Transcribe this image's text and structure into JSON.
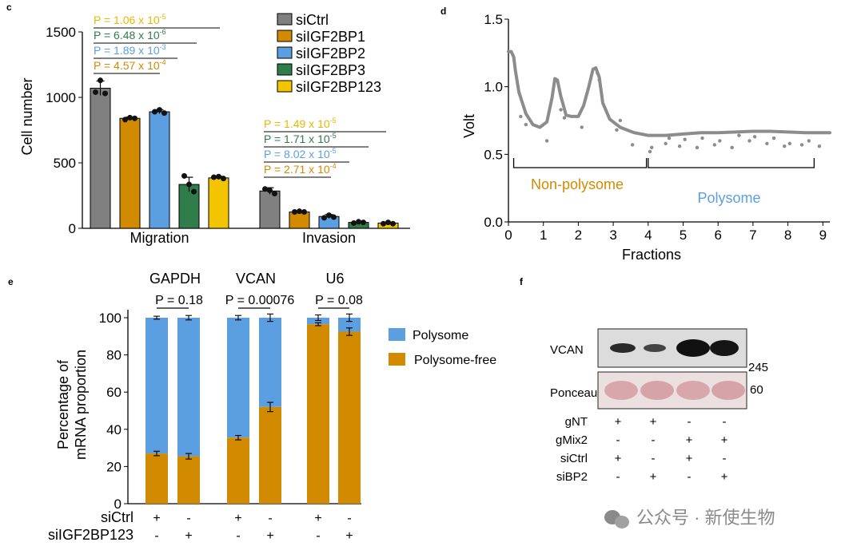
{
  "chart_data": [
    {
      "panel": "c",
      "type": "bar",
      "ylabel": "Cell number",
      "ylim": [
        0,
        1500
      ],
      "yticks": [
        0,
        500,
        1000,
        1500
      ],
      "groups": [
        "Migration",
        "Invasion"
      ],
      "legend": [
        "siCtrl",
        "siIGF2BP1",
        "siIGF2BP2",
        "siIGF2BP3",
        "siIGF2BP123"
      ],
      "series": [
        {
          "name": "siCtrl",
          "color": "#808080",
          "values": [
            1070,
            285
          ],
          "errors": [
            55,
            25
          ]
        },
        {
          "name": "siIGF2BP1",
          "color": "#d28a00",
          "values": [
            840,
            125
          ],
          "errors": [
            10,
            8
          ]
        },
        {
          "name": "siIGF2BP2",
          "color": "#5c9fe0",
          "values": [
            890,
            90
          ],
          "errors": [
            15,
            15
          ]
        },
        {
          "name": "siIGF2BP3",
          "color": "#2e7d4a",
          "values": [
            335,
            45
          ],
          "errors": [
            55,
            6
          ]
        },
        {
          "name": "siIGF2BP123",
          "color": "#f2c500",
          "values": [
            385,
            40
          ],
          "errors": [
            12,
            5
          ]
        }
      ],
      "points": [
        [
          [
            1040,
            1130,
            1030
          ],
          [
            830,
            845,
            840
          ],
          [
            890,
            905,
            880
          ],
          [
            400,
            335,
            280
          ],
          [
            390,
            395,
            380
          ]
        ],
        [
          [
            300,
            290,
            265
          ],
          [
            125,
            130,
            125
          ],
          [
            80,
            100,
            85
          ],
          [
            40,
            50,
            45
          ],
          [
            35,
            45,
            35
          ]
        ]
      ],
      "pvalues": [
        {
          "group": "Migration",
          "entries": [
            {
              "prefix": "P = 1.06 x 10",
              "exp": "-5",
              "color": "#e6b800"
            },
            {
              "prefix": "P = 6.48 x 10",
              "exp": "-6",
              "color": "#2e7d4a"
            },
            {
              "prefix": "P = 1.89 x 10",
              "exp": "-3",
              "color": "#5c9fe0"
            },
            {
              "prefix": "P = 4.57 x 10",
              "exp": "-4",
              "color": "#d28a00"
            }
          ]
        },
        {
          "group": "Invasion",
          "entries": [
            {
              "prefix": "P = 1.49 x 10",
              "exp": "-5",
              "color": "#e6b800"
            },
            {
              "prefix": "P = 1.71 x 10",
              "exp": "-5",
              "color": "#2e7d4a"
            },
            {
              "prefix": "P = 8.02 x 10",
              "exp": "-5",
              "color": "#5c9fe0"
            },
            {
              "prefix": "P = 2.71 x 10",
              "exp": "-4",
              "color": "#d28a00"
            }
          ]
        }
      ]
    },
    {
      "panel": "d",
      "type": "line",
      "title": "",
      "xlabel": "Fractions",
      "ylabel": "Volt",
      "xlim": [
        0,
        9.2
      ],
      "ylim": [
        0,
        1.5
      ],
      "xticks": [
        0,
        1,
        2,
        3,
        4,
        5,
        6,
        7,
        8,
        9
      ],
      "yticks": [
        "0.0",
        "0.5",
        "1.0",
        "1.5"
      ],
      "x": [
        0,
        0.08,
        0.15,
        0.2,
        0.3,
        0.5,
        0.7,
        0.9,
        1.1,
        1.25,
        1.33,
        1.4,
        1.5,
        1.65,
        1.8,
        2.0,
        2.15,
        2.3,
        2.42,
        2.5,
        2.6,
        2.7,
        2.9,
        3.2,
        3.6,
        4.0,
        4.5,
        5.0,
        5.5,
        6.0,
        6.5,
        7.0,
        7.5,
        8.0,
        8.5,
        9.2
      ],
      "y": [
        1.26,
        1.26,
        1.22,
        1.12,
        0.96,
        0.8,
        0.72,
        0.7,
        0.74,
        0.92,
        1.06,
        1.05,
        0.93,
        0.79,
        0.78,
        0.78,
        0.86,
        1.0,
        1.13,
        1.14,
        1.07,
        0.88,
        0.76,
        0.7,
        0.66,
        0.64,
        0.64,
        0.65,
        0.66,
        0.66,
        0.665,
        0.67,
        0.67,
        0.665,
        0.66,
        0.66
      ],
      "scatter_x": [
        0.5,
        1.1,
        1.5,
        2.1,
        2.6,
        3.1,
        3.55,
        4.05,
        4.5,
        4.9,
        5.4,
        5.9,
        6.4,
        6.9,
        7.4,
        7.9,
        8.4,
        8.9,
        0.35,
        1.6,
        2.55,
        3.2,
        4.1,
        4.6,
        5.05,
        5.55,
        6.05,
        6.6,
        7.05,
        7.6,
        8.05,
        8.6
      ],
      "scatter_y": [
        0.72,
        0.6,
        0.83,
        0.7,
        1.05,
        0.68,
        0.57,
        0.52,
        0.58,
        0.56,
        0.55,
        0.57,
        0.55,
        0.6,
        0.58,
        0.56,
        0.57,
        0.56,
        0.78,
        0.77,
        1.1,
        0.75,
        0.55,
        0.62,
        0.61,
        0.62,
        0.6,
        0.64,
        0.63,
        0.62,
        0.58,
        0.6
      ],
      "brackets": [
        {
          "label": "Non-polysome",
          "from": 0.15,
          "to": 3.95,
          "color": "#d28a00"
        },
        {
          "label": "Polysome",
          "from": 4.0,
          "to": 8.75,
          "color": "#5c9fe0"
        }
      ]
    },
    {
      "panel": "e",
      "type": "bar",
      "stacked": true,
      "ylabel": [
        "Percentage of",
        "mRNA proportion"
      ],
      "ylim": [
        0,
        100
      ],
      "yticks": [
        0,
        20,
        40,
        60,
        80,
        100
      ],
      "genes": [
        "GAPDH",
        "VCAN",
        "U6"
      ],
      "pvalues": [
        "P = 0.18",
        "P = 0.00076",
        "P = 0.08"
      ],
      "legend": [
        {
          "name": "Polysome",
          "color": "#5c9fe0"
        },
        {
          "name": "Polysome-free",
          "color": "#d28a00"
        }
      ],
      "bars": [
        {
          "free": 27,
          "free_err": 1.2,
          "top_err": 0.8
        },
        {
          "free": 25.5,
          "free_err": 1.5,
          "top_err": 1.2
        },
        {
          "free": 35.5,
          "free_err": 1.2,
          "top_err": 1.2
        },
        {
          "free": 52,
          "free_err": 2.5,
          "top_err": 2.0
        },
        {
          "free": 96.5,
          "free_err": 0.8,
          "top_err": 1.5
        },
        {
          "free": 92.5,
          "free_err": 2.0,
          "top_err": 2.0
        }
      ],
      "row_labels": [
        "siCtrl",
        "siIGF2BP123"
      ],
      "rows": [
        [
          "+",
          "-",
          "+",
          "-",
          "+",
          "-"
        ],
        [
          "-",
          "+",
          "-",
          "+",
          "-",
          "+"
        ]
      ]
    }
  ],
  "panel_labels": {
    "c": "c",
    "d": "d",
    "e": "e",
    "f": "f"
  },
  "blot": {
    "band_label": "VCAN",
    "loading_label": "Ponceau S",
    "marker_top": "245",
    "marker_bottom": "60",
    "row_labels": [
      "gNT",
      "gMix2",
      "siCtrl",
      "siBP2"
    ],
    "rows": [
      [
        "+",
        "+",
        "-",
        "-"
      ],
      [
        "-",
        "-",
        "+",
        "+"
      ],
      [
        "+",
        "-",
        "+",
        "-"
      ],
      [
        "-",
        "+",
        "-",
        "+"
      ]
    ]
  },
  "watermark": "公众号 · 新使生物"
}
